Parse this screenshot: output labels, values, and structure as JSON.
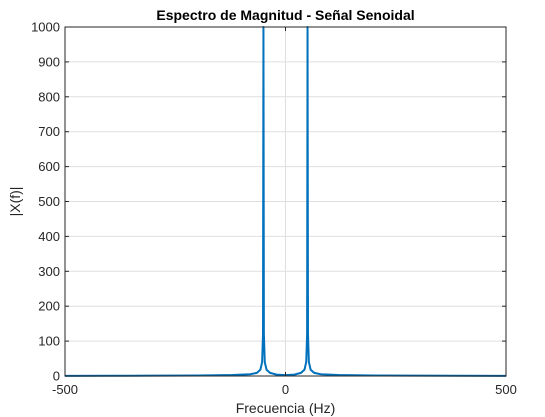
{
  "chart_data": {
    "type": "line",
    "title": "Espectro de Magnitud - Señal Senoidal",
    "xlabel": "Frecuencia (Hz)",
    "ylabel": "|X(f)|",
    "xlim": [
      -500,
      500
    ],
    "ylim": [
      0,
      1000
    ],
    "xticks": [
      -500,
      0,
      500
    ],
    "yticks": [
      0,
      100,
      200,
      300,
      400,
      500,
      600,
      700,
      800,
      900,
      1000
    ],
    "grid": true,
    "series": [
      {
        "color": "#0072bd",
        "x": [
          -500,
          -400,
          -300,
          -200,
          -120,
          -80,
          -65,
          -57,
          -53,
          -51,
          -50,
          -49,
          -47,
          -43,
          -35,
          -20,
          0,
          20,
          35,
          43,
          47,
          49,
          50,
          51,
          53,
          57,
          65,
          80,
          120,
          200,
          300,
          400,
          500
        ],
        "y": [
          0.5,
          0.7,
          1,
          1.5,
          3,
          5,
          9,
          18,
          40,
          120,
          1000,
          120,
          40,
          18,
          9,
          4,
          2.5,
          4,
          9,
          18,
          40,
          120,
          1000,
          120,
          40,
          18,
          9,
          5,
          3,
          1.5,
          1,
          0.7,
          0.5
        ]
      }
    ]
  }
}
